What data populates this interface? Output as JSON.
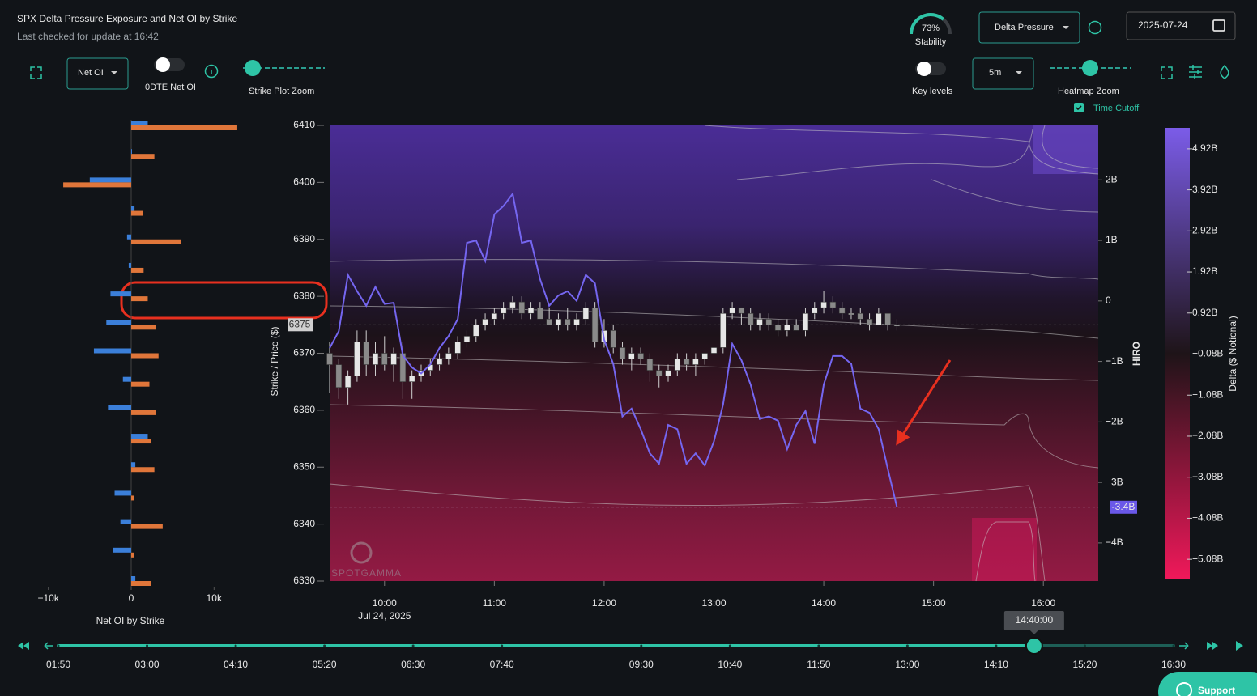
{
  "header": {
    "title": "SPX Delta Pressure Exposure and Net OI by Strike",
    "subtitle": "Last checked for update at 16:42"
  },
  "controls": {
    "stability": {
      "value": 73,
      "label": "73%",
      "caption": "Stability"
    },
    "mode": "Delta Pressure",
    "date": "2025-07-24",
    "net_oi": "Net OI",
    "odte": "0DTE Net OI",
    "strike_zoom": "Strike Plot Zoom",
    "key_levels": "Key levels",
    "interval": "5m",
    "heatmap_zoom": "Heatmap Zoom",
    "time_cutoff": "Time Cutoff",
    "support": "Support"
  },
  "chart_data": [
    {
      "type": "hbar",
      "title": "Net OI by Strike",
      "y": [
        6410,
        6405,
        6400,
        6395,
        6390,
        6385,
        6380,
        6375,
        6370,
        6365,
        6360,
        6355,
        6350,
        6345,
        6340,
        6335,
        6330
      ],
      "series": [
        {
          "color": "#3b7fd9",
          "values": [
            2000,
            0,
            -5000,
            400,
            -500,
            -300,
            -2500,
            -3000,
            -4500,
            -1000,
            -2800,
            2000,
            500,
            -2000,
            -1300,
            -2200,
            500
          ]
        },
        {
          "color": "#e0763a",
          "values": [
            12800,
            2800,
            -8200,
            1400,
            6000,
            1500,
            2000,
            3000,
            3300,
            2200,
            3000,
            2400,
            2800,
            300,
            3800,
            300,
            2400
          ]
        }
      ],
      "xlim": [
        -12900,
        13000
      ],
      "xticks": [
        {
          "value": -10000,
          "label": "−10k"
        },
        0,
        {
          "value": 10000,
          "label": "10k"
        }
      ],
      "ylim": [
        6330,
        6410
      ]
    },
    {
      "type": "candlestick",
      "x": [
        570,
        575,
        580,
        585,
        590,
        595,
        600,
        605,
        610,
        615,
        620,
        625,
        630,
        635,
        640,
        645,
        650,
        655,
        660,
        665,
        670,
        675,
        680,
        685,
        690,
        695,
        700,
        705,
        710,
        715,
        720,
        725,
        730,
        735,
        740,
        745,
        750,
        755,
        760,
        765,
        770,
        775,
        780,
        785,
        790,
        795,
        800,
        805,
        810,
        815,
        820,
        825,
        830,
        835,
        840,
        845,
        850,
        855,
        860,
        865,
        870,
        875,
        880
      ],
      "series": [
        {
          "type": "candlestick",
          "color": "#e6e6e6",
          "open": [
            6370,
            6368,
            6364,
            6366,
            6372,
            6368,
            6370,
            6368,
            6370,
            6365,
            6366,
            6367,
            6368,
            6369,
            6370,
            6372,
            6373,
            6375,
            6376,
            6377,
            6378,
            6379,
            6377,
            6378,
            6376,
            6375,
            6376,
            6375,
            6376,
            6378,
            6372,
            6374,
            6371,
            6369,
            6370,
            6369,
            6367,
            6366,
            6367,
            6369,
            6368,
            6369,
            6370,
            6371,
            6377,
            6378,
            6377,
            6375,
            6376,
            6375,
            6374,
            6375,
            6374,
            6377,
            6378,
            6379,
            6378,
            6377,
            6377,
            6376,
            6375,
            6377,
            6375
          ],
          "high": [
            6372,
            6369,
            6367,
            6374,
            6374,
            6372,
            6373,
            6371,
            6372,
            6367,
            6368,
            6369,
            6370,
            6371,
            6373,
            6374,
            6376,
            6377,
            6378,
            6379,
            6380,
            6380,
            6379,
            6379,
            6378,
            6377,
            6378,
            6377,
            6379,
            6379,
            6376,
            6375,
            6372,
            6371,
            6371,
            6370,
            6368,
            6368,
            6370,
            6370,
            6370,
            6370,
            6372,
            6378,
            6379,
            6378,
            6378,
            6377,
            6377,
            6376,
            6376,
            6376,
            6378,
            6379,
            6381,
            6380,
            6379,
            6378,
            6378,
            6377,
            6378,
            6377,
            6376
          ],
          "low": [
            6363,
            6362,
            6361,
            6365,
            6366,
            6366,
            6367,
            6365,
            6362,
            6362,
            6365,
            6366,
            6367,
            6368,
            6369,
            6371,
            6372,
            6374,
            6375,
            6376,
            6377,
            6376,
            6376,
            6376,
            6375,
            6374,
            6374,
            6374,
            6375,
            6371,
            6371,
            6370,
            6368,
            6367,
            6368,
            6365,
            6364,
            6365,
            6366,
            6367,
            6366,
            6368,
            6369,
            6370,
            6376,
            6375,
            6374,
            6374,
            6374,
            6373,
            6373,
            6374,
            6373,
            6376,
            6377,
            6377,
            6376,
            6376,
            6375,
            6374,
            6375,
            6374,
            6374
          ],
          "close": [
            6368,
            6364,
            6366,
            6372,
            6368,
            6370,
            6368,
            6370,
            6365,
            6366,
            6367,
            6368,
            6369,
            6370,
            6372,
            6373,
            6375,
            6376,
            6377,
            6378,
            6379,
            6377,
            6378,
            6376,
            6375,
            6376,
            6375,
            6376,
            6378,
            6372,
            6374,
            6371,
            6369,
            6370,
            6369,
            6367,
            6366,
            6367,
            6369,
            6368,
            6369,
            6370,
            6371,
            6377,
            6378,
            6377,
            6375,
            6376,
            6375,
            6374,
            6375,
            6374,
            6377,
            6378,
            6379,
            6378,
            6377,
            6377,
            6376,
            6375,
            6377,
            6375,
            6375
          ]
        },
        {
          "type": "line",
          "axis": "y2",
          "color": "#7566f0",
          "values": [
            -0.78,
            -0.5,
            0.43,
            0.16,
            -0.08,
            0.23,
            -0.05,
            -0.03,
            -0.9,
            -1.1,
            -1.2,
            -1.05,
            -0.78,
            -0.58,
            -0.3,
            0.96,
            1.0,
            0.66,
            1.43,
            1.57,
            1.77,
            0.96,
            1.0,
            0.36,
            -0.08,
            0.09,
            0.16,
            0,
            0.43,
            0.29,
            -0.64,
            -1.04,
            -1.91,
            -1.78,
            -2.12,
            -2.52,
            -2.69,
            -2.05,
            -2.12,
            -2.69,
            -2.52,
            -2.72,
            -2.32,
            -1.71,
            -0.71,
            -0.98,
            -1.38,
            -1.95,
            -1.91,
            -1.98,
            -2.45,
            -2.05,
            -1.82,
            -2.36,
            -1.38,
            -0.91,
            -0.91,
            -1.04,
            -1.78,
            -1.85,
            -2.12,
            -2.78,
            -3.41
          ]
        }
      ],
      "xlim": [
        570,
        990
      ],
      "xticks": [
        {
          "value": 600,
          "label": "10:00"
        },
        {
          "value": 660,
          "label": "11:00"
        },
        {
          "value": 720,
          "label": "12:00"
        },
        {
          "value": 780,
          "label": "13:00"
        },
        {
          "value": 840,
          "label": "14:00"
        },
        {
          "value": 900,
          "label": "15:00"
        },
        {
          "value": 960,
          "label": "16:00"
        }
      ],
      "date_label": "Jul 24, 2025",
      "ylim": [
        6330,
        6410
      ],
      "yticks": [
        6330,
        6340,
        6350,
        6360,
        6370,
        6380,
        6390,
        6400,
        6410
      ],
      "ylabel": "Strike / Price ($)",
      "y2lim": [
        -4.63,
        2.9
      ],
      "y2ticks": [
        {
          "value": 2,
          "label": "2B"
        },
        {
          "value": 1,
          "label": "1B"
        },
        0,
        {
          "value": -1,
          "label": "−1B"
        },
        {
          "value": -2,
          "label": "−2B"
        },
        {
          "value": -3,
          "label": "−3B"
        },
        {
          "value": -4,
          "label": "−4B"
        }
      ],
      "y2label": "HIRO",
      "last_price": 6375,
      "last_hiro": {
        "value": -3.41,
        "label": "-3.4B"
      },
      "watermark": "SPOTGAMMA"
    },
    {
      "type": "colorbar",
      "label": "Delta ($ Notional)",
      "ylim": [
        -5.57,
        5.43
      ],
      "colors": [
        "#f0185a",
        "#1e1418",
        "#7b5ce8"
      ],
      "yticks": [
        {
          "value": 4.92,
          "label": "4.92B"
        },
        {
          "value": 3.92,
          "label": "3.92B"
        },
        {
          "value": 2.92,
          "label": "2.92B"
        },
        {
          "value": 1.92,
          "label": "1.92B"
        },
        {
          "value": 0.92,
          "label": "0.92B"
        },
        {
          "value": -0.08,
          "label": "−0.08B"
        },
        {
          "value": -1.08,
          "label": "−1.08B"
        },
        {
          "value": -2.08,
          "label": "−2.08B"
        },
        {
          "value": -3.08,
          "label": "−3.08B"
        },
        {
          "value": -4.08,
          "label": "−4.08B"
        },
        {
          "value": -5.08,
          "label": "−5.08B"
        }
      ]
    }
  ],
  "timeline": {
    "xlim": [
      110,
      990
    ],
    "ticks": [
      {
        "value": 110,
        "label": "01:50"
      },
      {
        "value": 180,
        "label": "03:00"
      },
      {
        "value": 250,
        "label": "04:10"
      },
      {
        "value": 320,
        "label": "05:20"
      },
      {
        "value": 390,
        "label": "06:30"
      },
      {
        "value": 460,
        "label": "07:40"
      },
      {
        "value": 570,
        "label": "09:30"
      },
      {
        "value": 640,
        "label": "10:40"
      },
      {
        "value": 710,
        "label": "11:50"
      },
      {
        "value": 780,
        "label": "13:00"
      },
      {
        "value": 850,
        "label": "14:10"
      },
      {
        "value": 920,
        "label": "15:20"
      },
      {
        "value": 990,
        "label": "16:30"
      }
    ],
    "value": 880,
    "value_label": "14:40:00"
  }
}
